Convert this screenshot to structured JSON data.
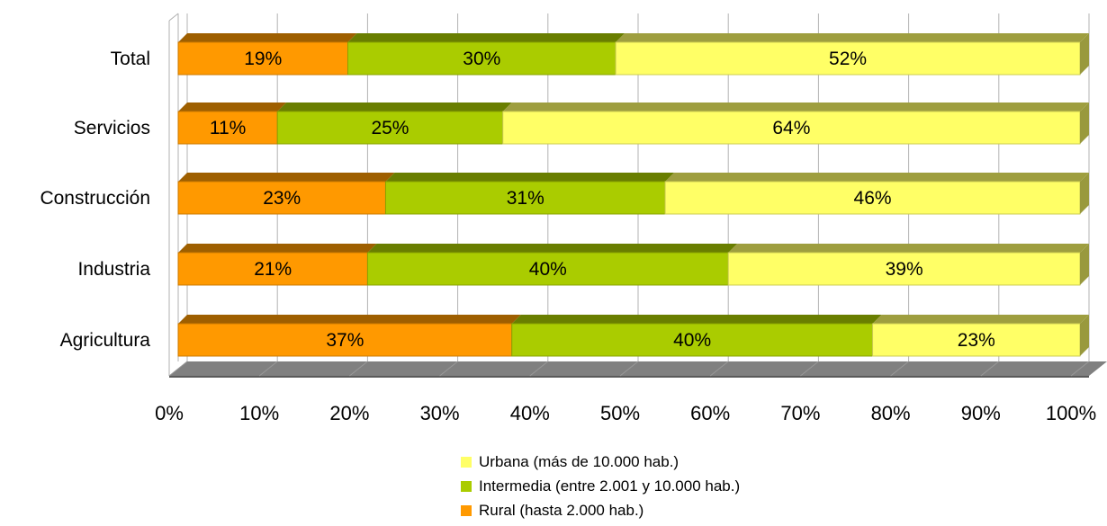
{
  "chart_data": {
    "type": "bar",
    "orientation": "horizontal",
    "stacked": "percent",
    "categories": [
      "Agricultura",
      "Industria",
      "Construcción",
      "Servicios",
      "Total"
    ],
    "series": [
      {
        "name": "Rural (hasta 2.000 hab.)",
        "values": [
          37,
          21,
          23,
          11,
          19
        ],
        "labels": [
          "37%",
          "21%",
          "23%",
          "11%",
          "19%"
        ],
        "color": "#FF9900"
      },
      {
        "name": "Intermedia (entre 2.001 y 10.000 hab.)",
        "values": [
          40,
          40,
          31,
          25,
          30
        ],
        "labels": [
          "40%",
          "40%",
          "31%",
          "25%",
          "30%"
        ],
        "color": "#AACC00"
      },
      {
        "name": "Urbana (más de 10.000 hab.)",
        "values": [
          23,
          39,
          46,
          64,
          52
        ],
        "labels": [
          "23%",
          "39%",
          "46%",
          "64%",
          "52%"
        ],
        "color": "#FFFF66"
      }
    ],
    "x_ticks": [
      "0%",
      "10%",
      "20%",
      "30%",
      "40%",
      "50%",
      "60%",
      "70%",
      "80%",
      "90%",
      "100%"
    ],
    "xlim": [
      0,
      100
    ],
    "grid": true,
    "legend_position": "bottom",
    "title": "",
    "xlabel": "",
    "ylabel": ""
  },
  "legend": [
    {
      "label": "Urbana (más de 10.000 hab.)",
      "color": "#FFFF66"
    },
    {
      "label": "Intermedia (entre 2.001 y 10.000 hab.)",
      "color": "#AACC00"
    },
    {
      "label": "Rural (hasta 2.000 hab.)",
      "color": "#FF9900"
    }
  ]
}
